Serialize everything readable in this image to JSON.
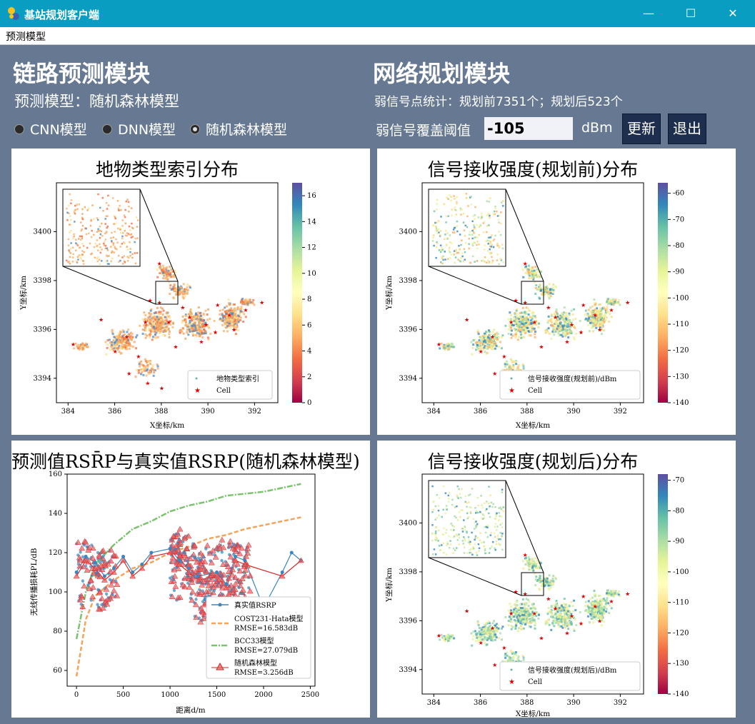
{
  "window": {
    "title": "基站规划客户端",
    "minimize": "—",
    "maximize": "☐",
    "close": "✕"
  },
  "menu": {
    "item": "预测模型"
  },
  "left": {
    "heading": "链路预测模块",
    "model_label": "预测模型：随机森林模型",
    "radios": [
      {
        "label": "CNN模型",
        "checked": false
      },
      {
        "label": "DNN模型",
        "checked": false
      },
      {
        "label": "随机森林模型",
        "checked": true
      }
    ]
  },
  "right": {
    "heading": "网络规划模块",
    "stats": "弱信号点统计：规划前7351个；规划后523个",
    "threshold_label": "弱信号覆盖阈值",
    "threshold_value": "-105",
    "unit": "dBm",
    "update_button": "更新",
    "exit_button": "退出"
  },
  "charts": {
    "landuse": {
      "title": "地物类型索引分布",
      "xlabel": "X坐标/km",
      "ylabel": "Y坐标/km",
      "xticks": [
        "384",
        "386",
        "388",
        "390",
        "392"
      ],
      "yticks": [
        "3394",
        "3396",
        "3398",
        "3400"
      ],
      "cbar_ticks": [
        "0",
        "2",
        "4",
        "6",
        "8",
        "10",
        "12",
        "14",
        "16"
      ],
      "legend": [
        "地物类型索引",
        "Cell"
      ]
    },
    "before": {
      "title": "信号接收强度(规划前)分布",
      "xlabel": "X坐标/km",
      "ylabel": "Y坐标/km",
      "xticks": [
        "384",
        "386",
        "388",
        "390",
        "392"
      ],
      "yticks": [
        "3394",
        "3396",
        "3398",
        "3400"
      ],
      "cbar_ticks": [
        "-60",
        "-70",
        "-80",
        "-90",
        "-100",
        "-110",
        "-120",
        "-130",
        "-140"
      ],
      "legend": [
        "信号接收强度(规划前)/dBm",
        "Cell"
      ]
    },
    "rsrp": {
      "title": "预测值RSR̄P与真实值RSRP(随机森林模型)",
      "xlabel": "距离d/m",
      "ylabel": "无线传播损耗PL/dB",
      "xticks": [
        "0",
        "500",
        "1000",
        "1500",
        "2000",
        "2500"
      ],
      "yticks": [
        "60",
        "80",
        "100",
        "120",
        "140",
        "160"
      ],
      "legend": [
        "真实值RSRP",
        "COST231-Hata模型",
        "RMSE=16.583dB",
        "BCC33模型",
        "RMSE=27.079dB",
        "随机森林模型",
        "RMSE=3.256dB"
      ]
    },
    "after": {
      "title": "信号接收强度(规划后)分布",
      "xlabel": "X坐标/km",
      "ylabel": "Y坐标/km",
      "xticks": [
        "384",
        "386",
        "388",
        "390",
        "392"
      ],
      "yticks": [
        "3394",
        "3396",
        "3398",
        "3400"
      ],
      "cbar_ticks": [
        "-70",
        "-80",
        "-90",
        "-100",
        "-110",
        "-120",
        "-130",
        "-140"
      ],
      "legend": [
        "信号接收强度(规划后)/dBm",
        "Cell"
      ]
    }
  },
  "chart_data": [
    {
      "type": "scatter",
      "title": "地物类型索引分布",
      "xlabel": "X坐标/km",
      "ylabel": "Y坐标/km",
      "xlim": [
        383.5,
        393
      ],
      "ylim": [
        3393,
        3402
      ],
      "colorbar": {
        "min": 0,
        "max": 17
      },
      "series": [
        {
          "name": "地物类型索引"
        },
        {
          "name": "Cell"
        }
      ],
      "cells": [
        [
          384.2,
          3395.4
        ],
        [
          386.0,
          3395.1
        ],
        [
          386.5,
          3395.7
        ],
        [
          387.0,
          3394.9
        ],
        [
          387.3,
          3396.3
        ],
        [
          387.5,
          3397.2
        ],
        [
          387.9,
          3398.7
        ],
        [
          387.9,
          3397.1
        ],
        [
          388.3,
          3396.3
        ],
        [
          388.6,
          3395.3
        ],
        [
          388.9,
          3396.9
        ],
        [
          389.2,
          3396.5
        ],
        [
          389.7,
          3395.5
        ],
        [
          389.9,
          3396.2
        ],
        [
          390.4,
          3397.0
        ],
        [
          390.9,
          3396.6
        ],
        [
          391.1,
          3396.0
        ],
        [
          391.6,
          3396.8
        ],
        [
          392.3,
          3397.1
        ],
        [
          386.6,
          3394.2
        ],
        [
          387.4,
          3393.8
        ],
        [
          388.0,
          3393.6
        ],
        [
          390.3,
          3395.9
        ],
        [
          385.4,
          3396.4
        ]
      ]
    },
    {
      "type": "scatter",
      "title": "信号接收强度(规划前)分布",
      "xlabel": "X坐标/km",
      "ylabel": "Y坐标/km",
      "xlim": [
        383.5,
        393
      ],
      "ylim": [
        3393,
        3402
      ],
      "colorbar": {
        "min": -140,
        "max": -56
      },
      "series": [
        {
          "name": "信号接收强度(规划前)/dBm"
        },
        {
          "name": "Cell"
        }
      ]
    },
    {
      "type": "line",
      "title": "预测值RSR̄P与真实值RSRP(随机森林模型)",
      "xlabel": "距离d/m",
      "ylabel": "无线传播损耗PL/dB",
      "xlim": [
        -100,
        2550
      ],
      "ylim": [
        52,
        160
      ],
      "series": [
        {
          "name": "真实值RSRP",
          "x": [
            0,
            100,
            200,
            300,
            400,
            500,
            600,
            700,
            800,
            1000,
            1100,
            1200,
            1300,
            1500,
            1600,
            1700,
            1800,
            2000,
            2200,
            2300,
            2400
          ],
          "y": [
            110,
            118,
            115,
            108,
            112,
            118,
            110,
            114,
            120,
            122,
            116,
            112,
            108,
            110,
            104,
            118,
            116,
            92,
            110,
            120,
            116
          ]
        },
        {
          "name": "COST231-Hata模型",
          "x": [
            0,
            100,
            200,
            400,
            600,
            800,
            1000,
            1200,
            1400,
            1600,
            1800,
            2000,
            2200,
            2400
          ],
          "y": [
            57,
            86,
            98,
            106,
            112,
            115,
            120,
            123,
            127,
            129,
            132,
            134,
            136,
            138
          ]
        },
        {
          "name": "BCC33模型",
          "x": [
            0,
            100,
            200,
            400,
            600,
            800,
            1000,
            1200,
            1400,
            1600,
            1800,
            2000,
            2200,
            2400
          ],
          "y": [
            76,
            100,
            114,
            124,
            132,
            136,
            141,
            144,
            146,
            149,
            150,
            151,
            153,
            155
          ]
        },
        {
          "name": "随机森林模型",
          "x": [
            0,
            100,
            200,
            300,
            400,
            500,
            600,
            700,
            800,
            1000,
            1100,
            1200,
            1300,
            1500,
            1600,
            1700,
            1800,
            2200,
            2400
          ],
          "y": [
            108,
            116,
            112,
            106,
            110,
            116,
            108,
            112,
            118,
            120,
            114,
            110,
            106,
            108,
            102,
            116,
            114,
            108,
            116
          ]
        }
      ]
    },
    {
      "type": "scatter",
      "title": "信号接收强度(规划后)分布",
      "xlabel": "X坐标/km",
      "ylabel": "Y坐标/km",
      "xlim": [
        383.5,
        393
      ],
      "ylim": [
        3393,
        3402
      ],
      "colorbar": {
        "min": -140,
        "max": -68
      },
      "series": [
        {
          "name": "信号接收强度(规划后)/dBm"
        },
        {
          "name": "Cell"
        }
      ]
    }
  ],
  "colors": {
    "titlebar": "#0a9dc2",
    "background": "#677992",
    "button": "#1e2e4e",
    "cell": "#e00000",
    "real": "#3a86c0",
    "cost231": "#f4a35a",
    "bcc33": "#7cc26f",
    "rf": "#d62728"
  }
}
